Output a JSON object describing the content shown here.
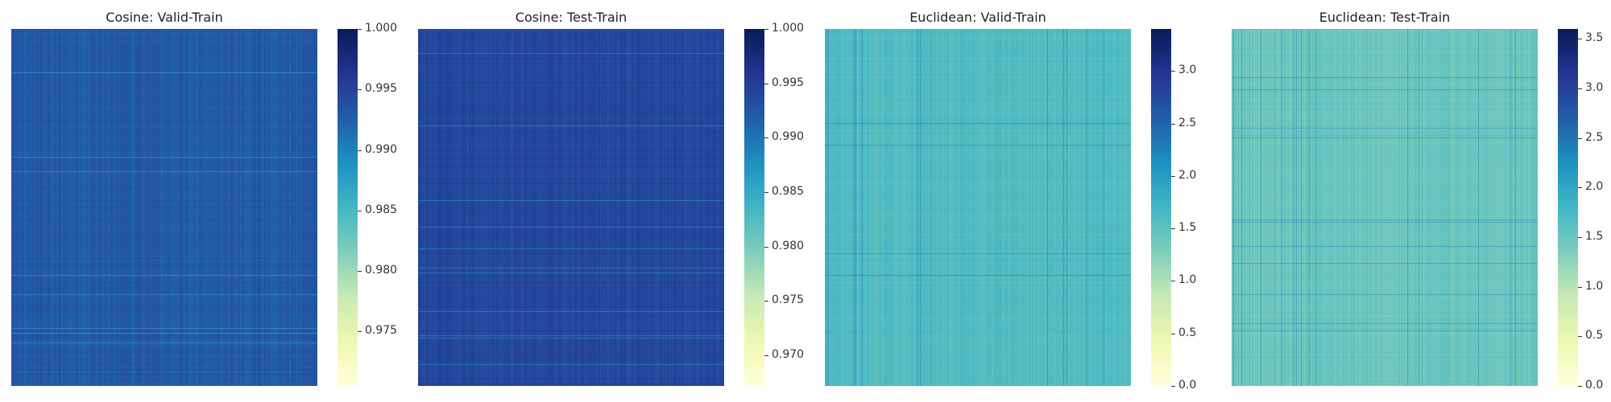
{
  "chart_data": [
    {
      "type": "heatmap",
      "title": "Cosine: Valid-Train",
      "colormap": "YlGnBu",
      "vmin": 0.9705,
      "vmax": 1.0,
      "dominant_value": 0.993,
      "colorbar_ticks": [
        "0.975",
        "0.980",
        "0.985",
        "0.990",
        "0.995",
        "1.000"
      ],
      "colorbar_tick_values": [
        0.975,
        0.98,
        0.985,
        0.99,
        0.995,
        1.0
      ],
      "grid": false
    },
    {
      "type": "heatmap",
      "title": "Cosine: Test-Train",
      "colormap": "YlGnBu",
      "vmin": 0.9672,
      "vmax": 1.0,
      "dominant_value": 0.994,
      "colorbar_ticks": [
        "0.970",
        "0.975",
        "0.980",
        "0.985",
        "0.990",
        "0.995",
        "1.000"
      ],
      "colorbar_tick_values": [
        0.97,
        0.975,
        0.98,
        0.985,
        0.99,
        0.995,
        1.0
      ],
      "grid": false
    },
    {
      "type": "heatmap",
      "title": "Euclidean: Valid-Train",
      "colormap": "YlGnBu",
      "vmin": 0.0,
      "vmax": 3.4,
      "dominant_value": 1.6,
      "colorbar_ticks": [
        "0.0",
        "0.5",
        "1.0",
        "1.5",
        "2.0",
        "2.5",
        "3.0"
      ],
      "colorbar_tick_values": [
        0.0,
        0.5,
        1.0,
        1.5,
        2.0,
        2.5,
        3.0
      ],
      "grid": false
    },
    {
      "type": "heatmap",
      "title": "Euclidean: Test-Train",
      "colormap": "YlGnBu",
      "vmin": 0.0,
      "vmax": 3.6,
      "dominant_value": 1.5,
      "colorbar_ticks": [
        "0.0",
        "0.5",
        "1.0",
        "1.5",
        "2.0",
        "2.5",
        "3.0",
        "3.5"
      ],
      "colorbar_tick_values": [
        0.0,
        0.5,
        1.0,
        1.5,
        2.0,
        2.5,
        3.0,
        3.5
      ],
      "grid": false
    }
  ]
}
